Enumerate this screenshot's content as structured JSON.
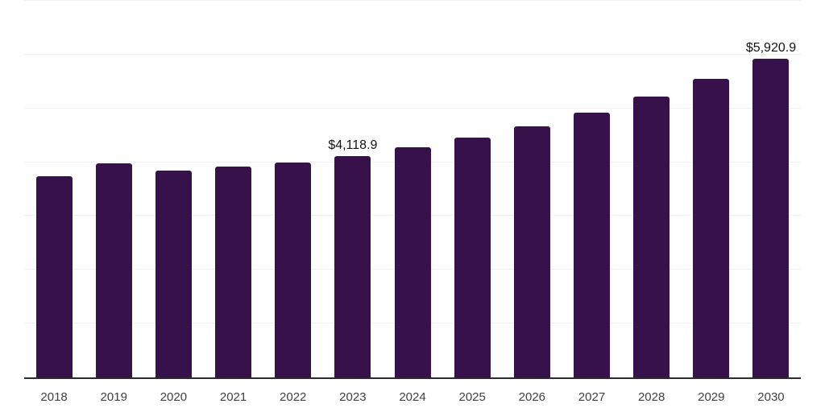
{
  "chart_data": {
    "type": "bar",
    "title": "",
    "xlabel": "",
    "ylabel": "",
    "categories": [
      "2018",
      "2019",
      "2020",
      "2021",
      "2022",
      "2023",
      "2024",
      "2025",
      "2026",
      "2027",
      "2028",
      "2029",
      "2030"
    ],
    "values": [
      3735,
      3985,
      3840,
      3925,
      3990,
      4118.9,
      4280,
      4460,
      4670,
      4920,
      5220,
      5550,
      5920.9
    ],
    "data_labels": [
      "",
      "",
      "",
      "",
      "",
      "$4,118.9",
      "",
      "",
      "",
      "",
      "",
      "",
      "$5,920.9"
    ],
    "ylim": [
      0,
      7000
    ],
    "gridline_step": 1000,
    "grid": "on",
    "legend": "none",
    "y_tick_labels_visible": false,
    "colors": {
      "bar": "#37124A",
      "gridline": "#F2F2F2",
      "axis_line": "#2B2B2B",
      "tick_label": "#404040",
      "data_label": "#111111",
      "background": "#FFFFFF"
    }
  }
}
